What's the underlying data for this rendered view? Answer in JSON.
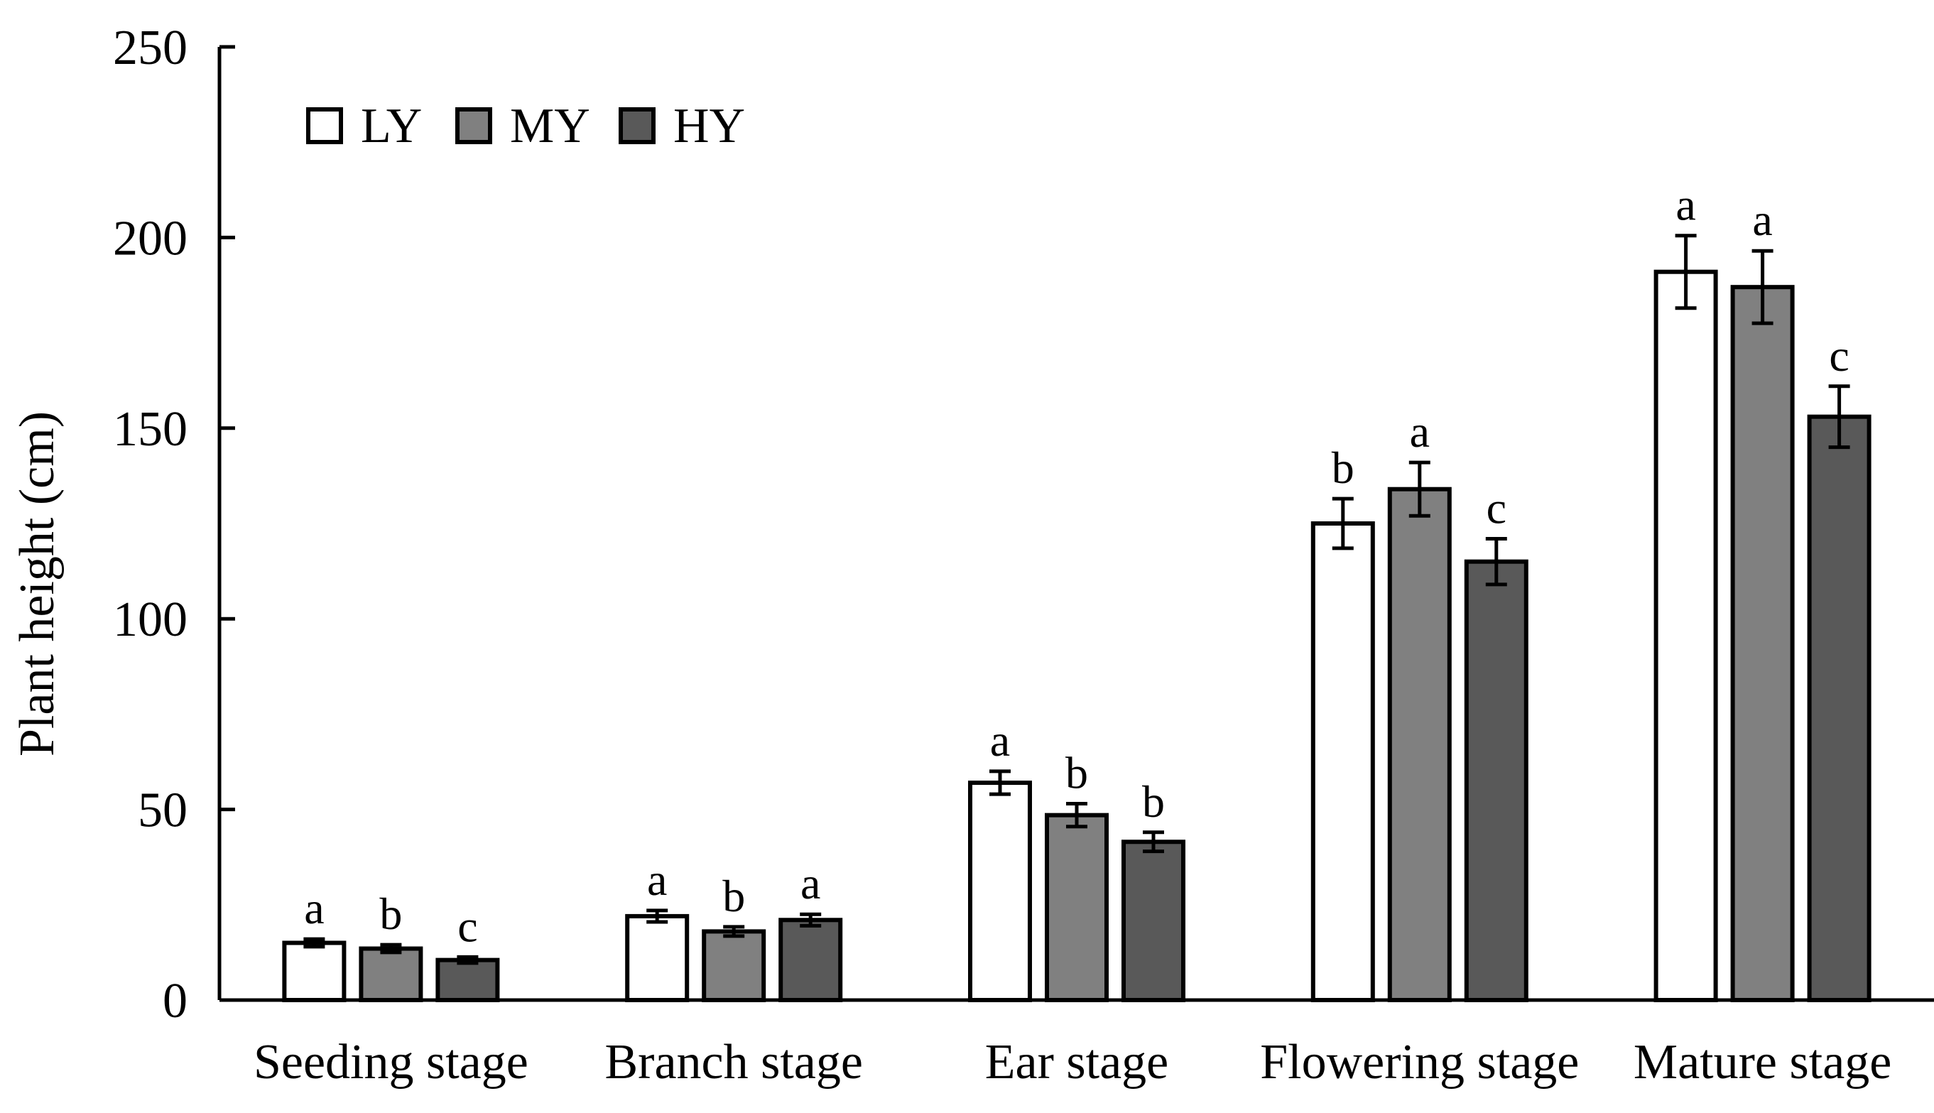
{
  "chart_data": {
    "type": "bar",
    "title": "",
    "xlabel": "",
    "ylabel": "Plant height (cm)",
    "ylim": [
      0,
      250
    ],
    "yticks": [
      0,
      50,
      100,
      150,
      200,
      250
    ],
    "grid": false,
    "legend_position": "top-left",
    "categories": [
      "Seeding stage",
      "Branch stage",
      "Ear stage",
      "Flowering stage",
      "Mature stage"
    ],
    "series": [
      {
        "name": "LY",
        "color": "#ffffff",
        "values": [
          15,
          22,
          57,
          125,
          191
        ],
        "errors": [
          1,
          1.5,
          3,
          6.5,
          9.5
        ],
        "letters": [
          "a",
          "a",
          "a",
          "b",
          "a"
        ]
      },
      {
        "name": "MY",
        "color": "#808080",
        "values": [
          13.5,
          18,
          48.5,
          134,
          187
        ],
        "errors": [
          1,
          1.2,
          3,
          7,
          9.5
        ],
        "letters": [
          "b",
          "b",
          "b",
          "a",
          "a"
        ]
      },
      {
        "name": "HY",
        "color": "#595959",
        "values": [
          10.5,
          21,
          41.5,
          115,
          153
        ],
        "errors": [
          0.8,
          1.5,
          2.5,
          6,
          8
        ],
        "letters": [
          "c",
          "a",
          "b",
          "c",
          "c"
        ]
      }
    ]
  }
}
